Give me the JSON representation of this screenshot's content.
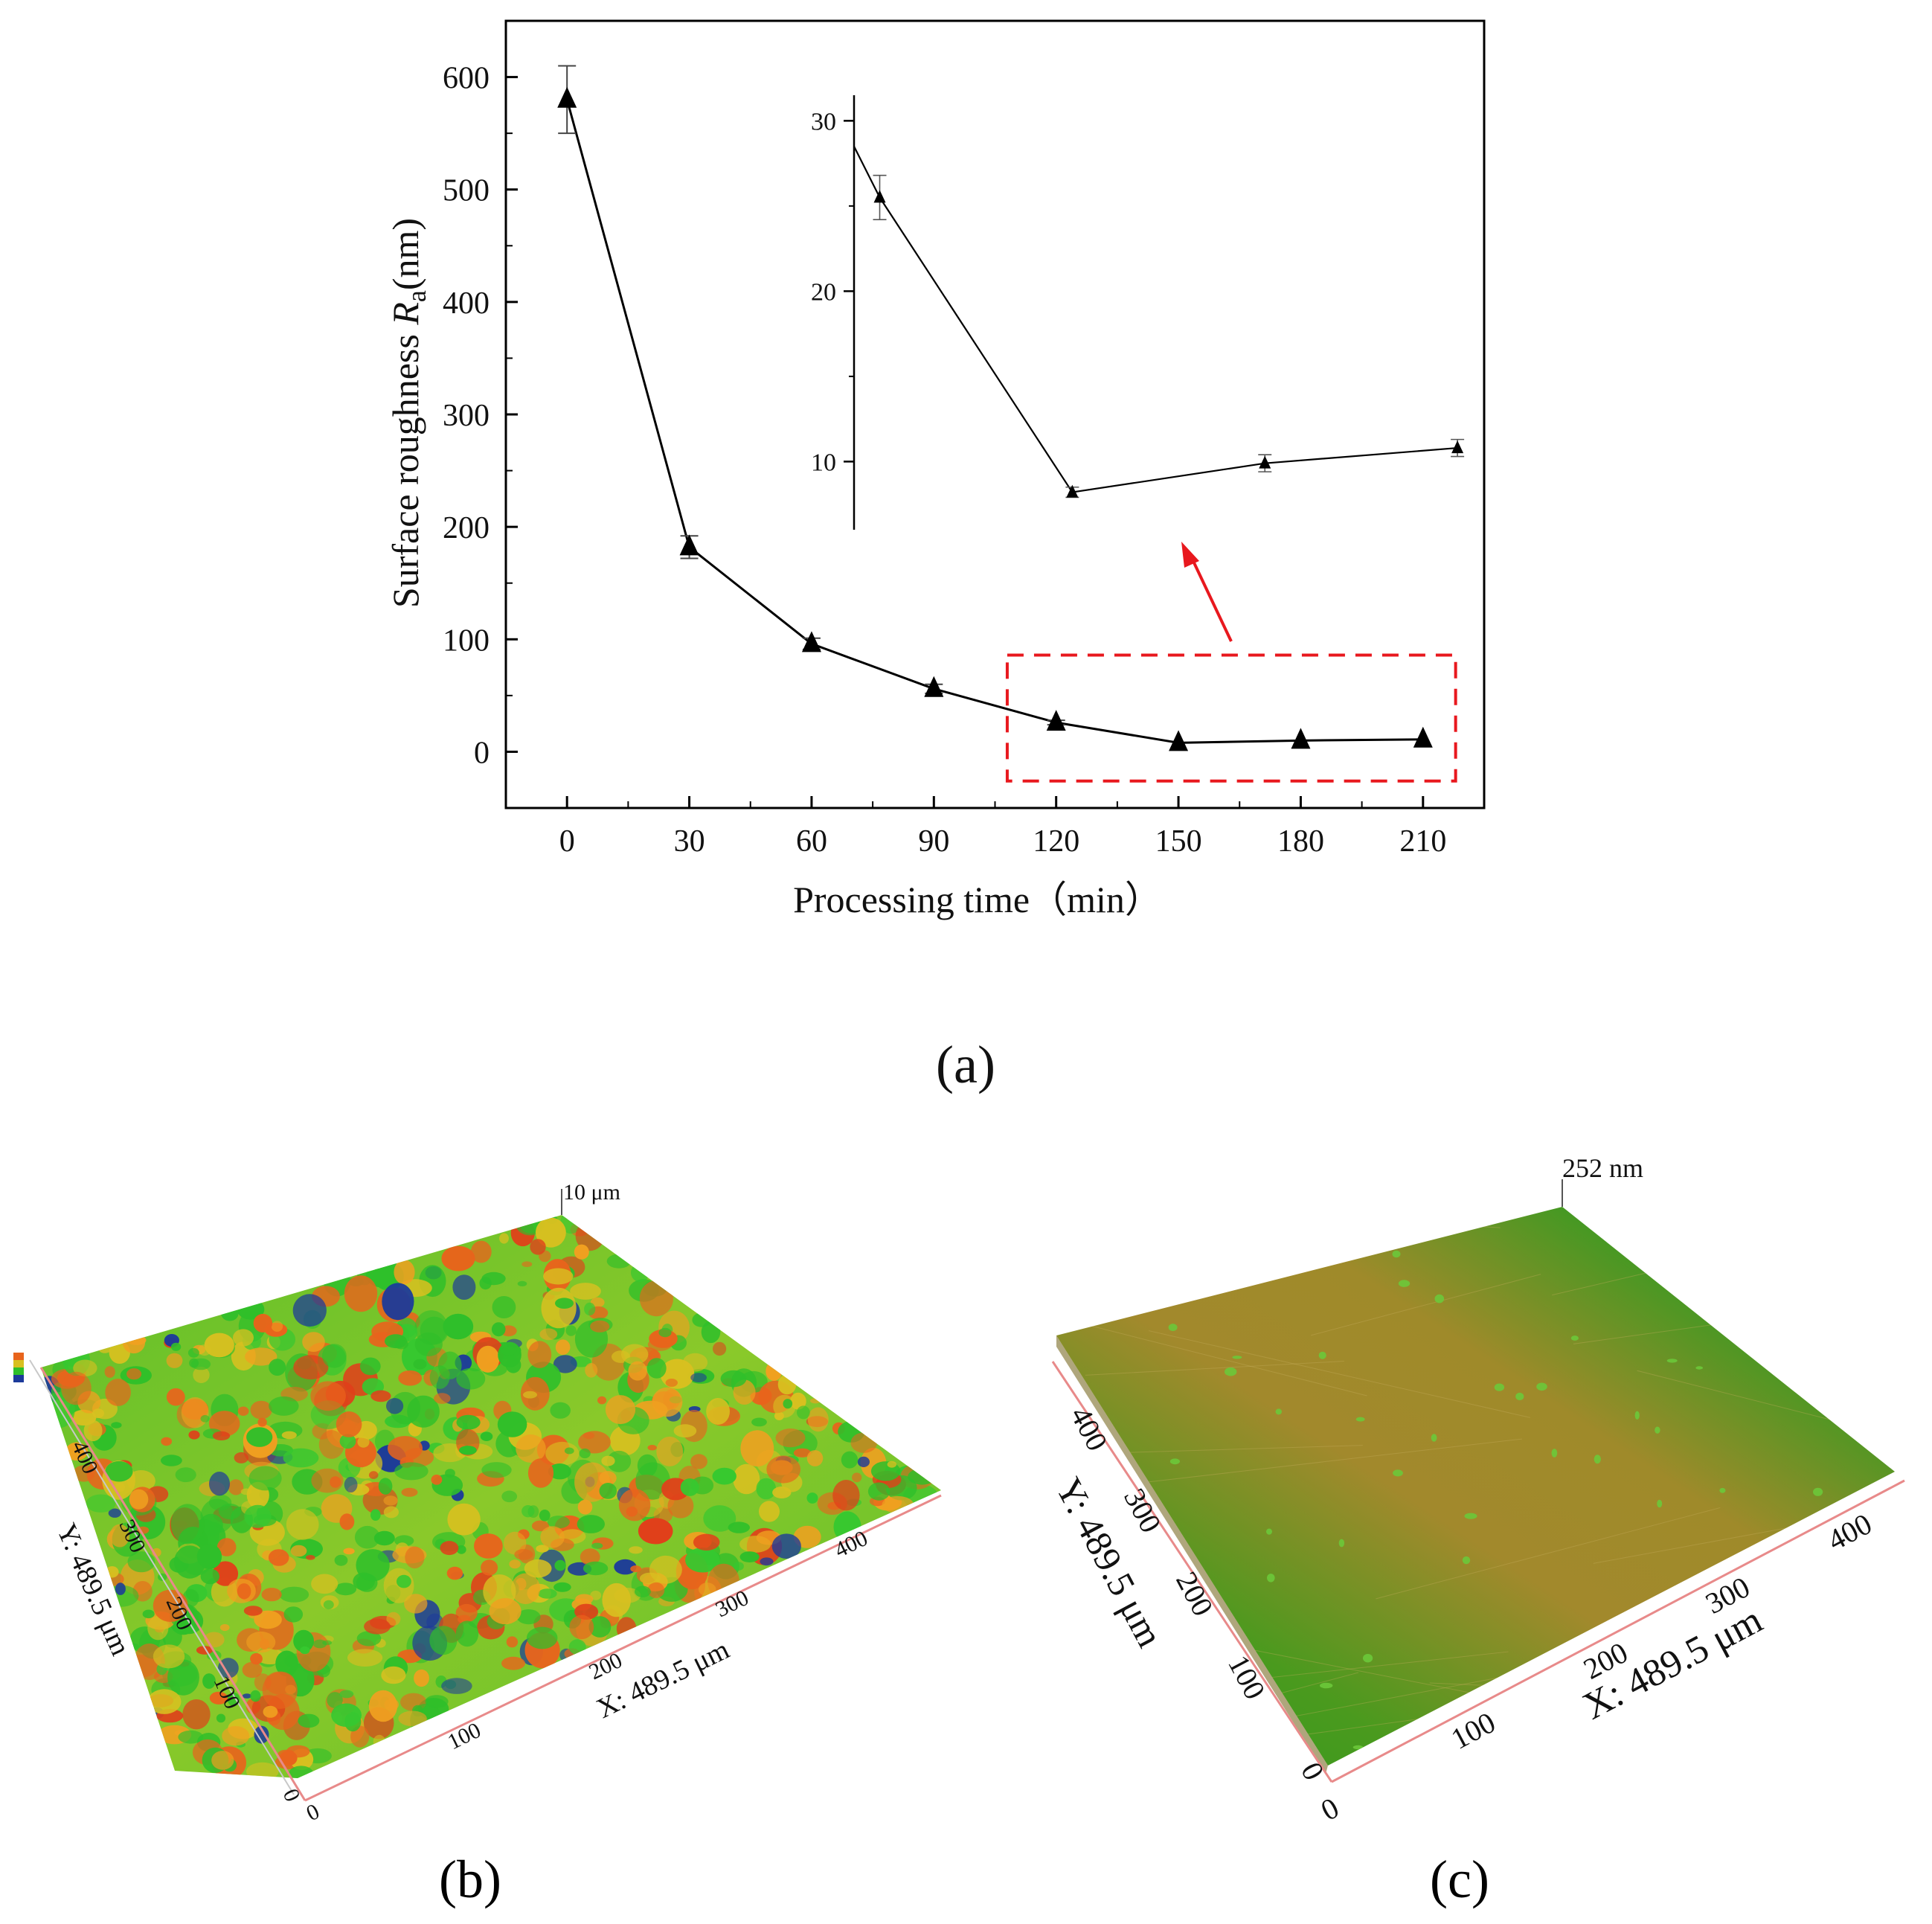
{
  "chart_data": {
    "type": "line",
    "panel_label": "(a)",
    "xlabel": "Processing time（min）",
    "ylabel_main": "Surface roughness ",
    "ylabel_symbol": "R",
    "ylabel_subscript": "a",
    "ylabel_unit": "(nm)",
    "xlim": [
      -15,
      225
    ],
    "ylim": [
      -50,
      650
    ],
    "xticks": [
      0,
      30,
      60,
      90,
      120,
      150,
      180,
      210
    ],
    "yticks": [
      0,
      100,
      200,
      300,
      400,
      500,
      600
    ],
    "series": [
      {
        "name": "Ra",
        "marker": "triangle",
        "x": [
          0,
          30,
          60,
          90,
          120,
          150,
          180,
          210
        ],
        "y": [
          580,
          182,
          96,
          56,
          26,
          8,
          10,
          11
        ],
        "err": [
          30,
          10,
          5,
          4,
          2,
          0.5,
          0.5,
          0.5
        ]
      }
    ],
    "highlight_region": {
      "x": [
        108,
        218
      ],
      "y": [
        -26,
        86
      ]
    },
    "inset": {
      "xlim": [
        116,
        213
      ],
      "ylim": [
        6,
        31.5
      ],
      "yticks": [
        10,
        20,
        30
      ],
      "start_point": {
        "x": 116,
        "y": 28.5
      },
      "x": [
        120,
        150,
        180,
        210
      ],
      "y": [
        25.5,
        8.2,
        9.9,
        10.8
      ],
      "err": [
        1.3,
        0.3,
        0.5,
        0.5
      ]
    }
  },
  "panel_b": {
    "label": "(b)",
    "z_label": "10 μm",
    "x_axis_label": "X: 489.5 μm",
    "y_axis_label": "Y: 489.5 μm",
    "x_ticks": [
      "0",
      "100",
      "200",
      "300",
      "400"
    ],
    "y_ticks": [
      "0",
      "100",
      "200",
      "300",
      "400"
    ]
  },
  "panel_c": {
    "label": "(c)",
    "z_label": "252 nm",
    "x_axis_label": "X: 489.5 μm",
    "y_axis_label": "Y: 489.5 μm",
    "x_ticks": [
      "0",
      "100",
      "200",
      "300",
      "400"
    ],
    "y_ticks": [
      "0",
      "100",
      "200",
      "300",
      "400"
    ]
  },
  "colors": {
    "line": "#000000",
    "highlight": "#e8181e",
    "surface_green": "#2fbf2a",
    "surface_orange": "#e8641c",
    "surface_yellow": "#d8c020",
    "surface_blue": "#1c3a9a",
    "flat_green": "#3f9a22",
    "flat_olive": "#a88a2a"
  }
}
